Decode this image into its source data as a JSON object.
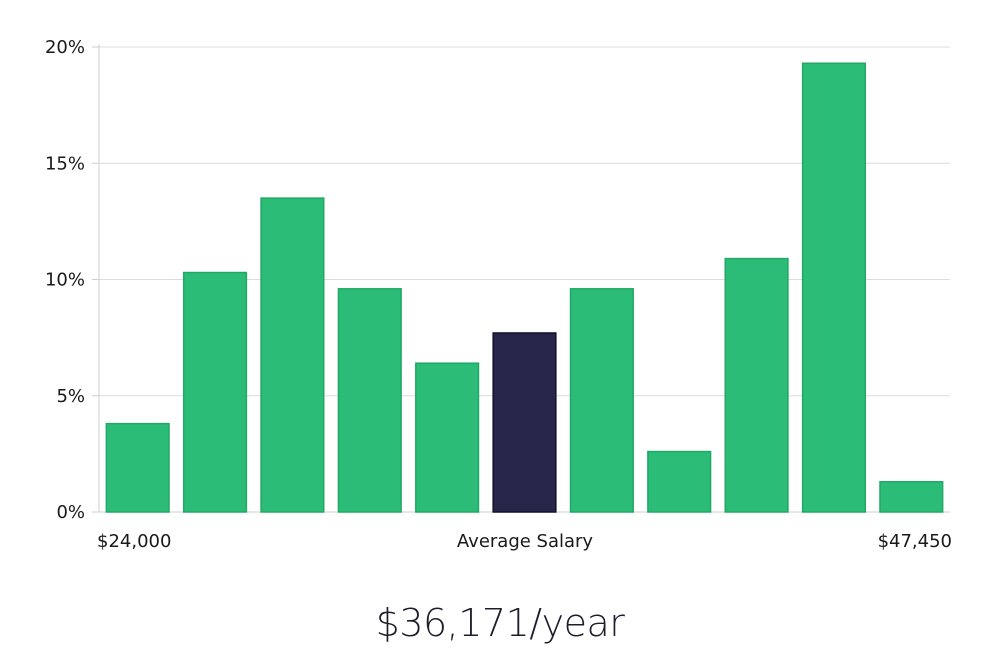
{
  "chart_data": {
    "type": "bar",
    "title": "",
    "xlabel": "Average Salary",
    "ylabel": "",
    "ylim": [
      0,
      20
    ],
    "y_ticks": [
      {
        "value": 0,
        "label": "0%"
      },
      {
        "value": 5,
        "label": "5%"
      },
      {
        "value": 10,
        "label": "10%"
      },
      {
        "value": 15,
        "label": "15%"
      },
      {
        "value": 20,
        "label": "20%"
      }
    ],
    "x_range_labels": {
      "min": "$24,000",
      "max": "$47,450"
    },
    "values": [
      3.8,
      10.3,
      13.5,
      9.6,
      6.4,
      7.7,
      9.6,
      2.6,
      10.9,
      19.3,
      1.3
    ],
    "highlight_index": 5,
    "grid": true,
    "colors": {
      "bar": "#2bbd77",
      "bar_edge": "#22a866",
      "highlight": "#28254a",
      "highlight_edge": "#14122b",
      "grid": "#dcdcdc",
      "axis": "#cfcfcf",
      "text": "#1a1a1a"
    }
  },
  "summary": {
    "salary_text": "$36,171/year"
  }
}
